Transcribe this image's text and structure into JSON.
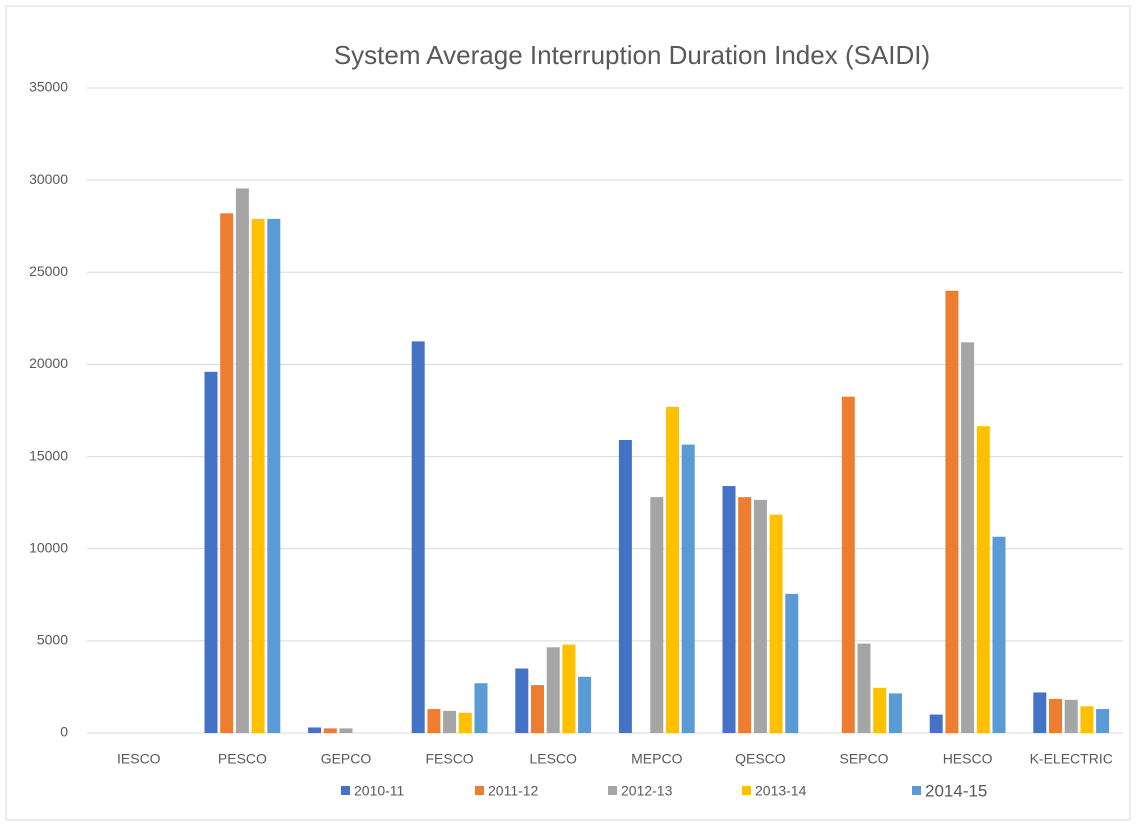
{
  "chart_data": {
    "type": "bar",
    "title": "System Average Interruption Duration Index (SAIDI)",
    "categories": [
      "IESCO",
      "PESCO",
      "GEPCO",
      "FESCO",
      "LESCO",
      "MEPCO",
      "QESCO",
      "SEPCO",
      "HESCO",
      "K-ELECTRIC"
    ],
    "series": [
      {
        "name": "2010-11",
        "color": "#4472c4",
        "values": [
          0,
          19600,
          300,
          21250,
          3500,
          15900,
          13400,
          0,
          1000,
          2200
        ]
      },
      {
        "name": "2011-12",
        "color": "#ed7d31",
        "values": [
          0,
          28200,
          250,
          1300,
          2600,
          0,
          12800,
          18250,
          24000,
          1850
        ]
      },
      {
        "name": "2012-13",
        "color": "#a5a5a5",
        "values": [
          0,
          29550,
          250,
          1200,
          4650,
          12800,
          12650,
          4850,
          21200,
          1800
        ]
      },
      {
        "name": "2013-14",
        "color": "#ffc000",
        "values": [
          0,
          27900,
          0,
          1100,
          4800,
          17700,
          11850,
          2450,
          16650,
          1450
        ]
      },
      {
        "name": "2014-15",
        "color": "#5b9bd5",
        "values": [
          0,
          27900,
          0,
          2700,
          3050,
          15650,
          7550,
          2150,
          10650,
          1300
        ]
      }
    ],
    "ylim": [
      0,
      35000
    ],
    "yticks": [
      0,
      5000,
      10000,
      15000,
      20000,
      25000,
      30000,
      35000
    ],
    "grid": true,
    "legend": "bottom"
  }
}
